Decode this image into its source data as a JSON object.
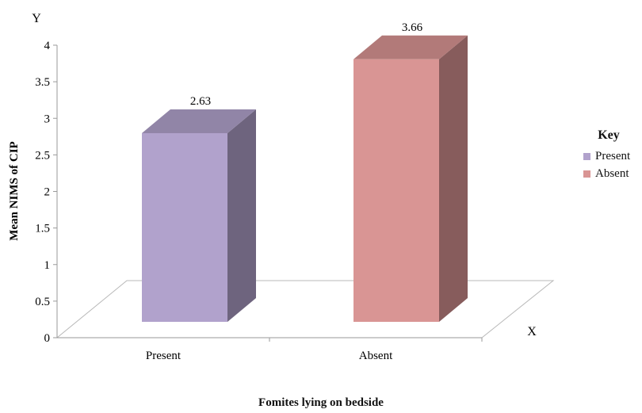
{
  "chart_data": {
    "type": "bar",
    "categories": [
      "Present",
      "Absent"
    ],
    "values": [
      2.63,
      3.66
    ],
    "data_labels": [
      "2.63",
      "3.66"
    ],
    "colors": [
      "#b1a2cc",
      "#d99594"
    ],
    "ylabel": "Mean  NIMS of CIP",
    "xlabel": "Fomites lying on bedside",
    "y_axis_letter": "Y",
    "x_axis_letter": "X",
    "ylim": [
      0,
      4
    ],
    "yticks": [
      "0",
      "0.5",
      "1",
      "1.5",
      "2",
      "2.5",
      "3",
      "3.5",
      "4"
    ],
    "legend": {
      "title": "Key",
      "position": "right",
      "entries": [
        "Present",
        "Absent"
      ]
    },
    "grid": false,
    "style": "3d-column"
  }
}
